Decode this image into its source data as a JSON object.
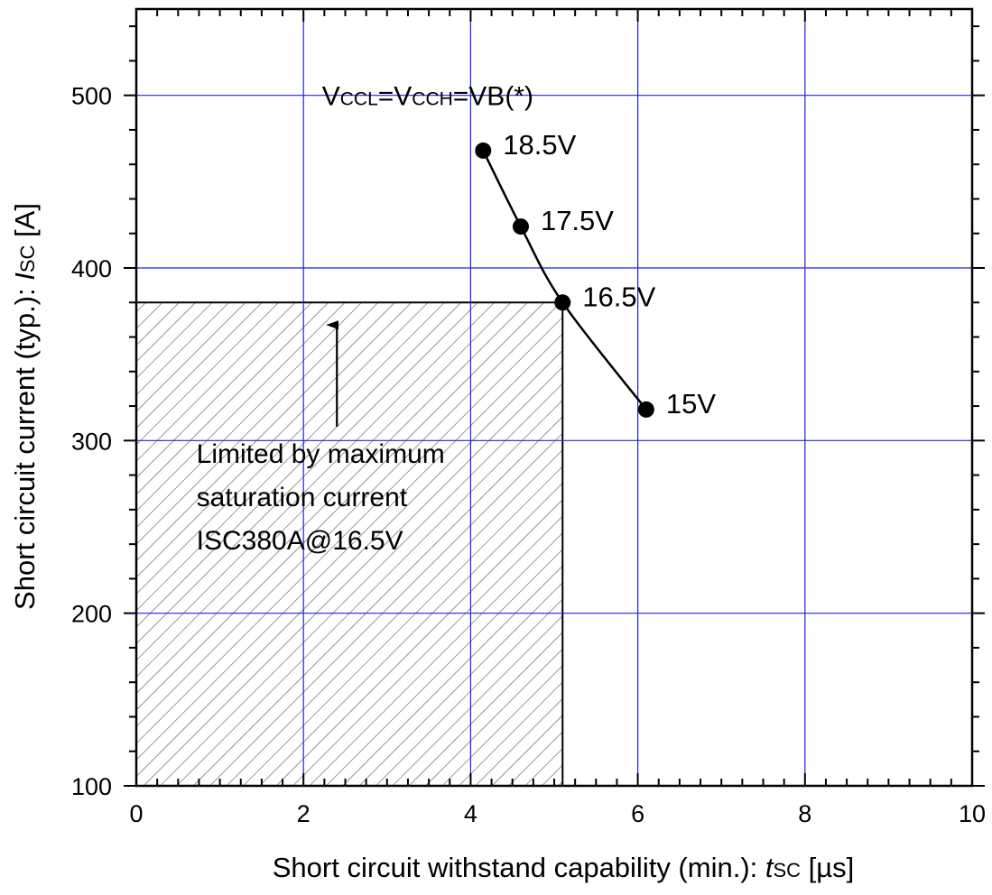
{
  "chart_data": {
    "type": "line",
    "title": "",
    "xlabel": {
      "prefix": "Short circuit withstand capability (min.): ",
      "symbol": "t",
      "subscript": "SC",
      "suffix": " [µs]"
    },
    "ylabel": {
      "prefix": "Short circuit current (typ.): ",
      "symbol": "I",
      "subscript": "SC",
      "suffix": " [A]"
    },
    "xlim": [
      0,
      10
    ],
    "ylim": [
      100,
      550
    ],
    "xticks": [
      0,
      2,
      4,
      6,
      8,
      10
    ],
    "xtick_labels": [
      "0",
      "2",
      "4",
      "6",
      "8",
      "10"
    ],
    "yticks": [
      100,
      200,
      300,
      400,
      500
    ],
    "ytick_labels": [
      "100",
      "200",
      "300",
      "400",
      "500"
    ],
    "grid": true,
    "grid_color": "#2222dd",
    "series": [
      {
        "x": [
          4.15,
          4.6,
          5.1,
          6.1
        ],
        "y": [
          468,
          424,
          380,
          318
        ],
        "point_labels": [
          "18.5V",
          "17.5V",
          "16.5V",
          "15V"
        ],
        "color": "#000000"
      }
    ],
    "shaded_region": {
      "x": [
        0,
        5.1
      ],
      "y": [
        100,
        380
      ],
      "pattern": "diagonal-hatch",
      "label_lines": [
        "Limited by maximum",
        "saturation current",
        "ISC380A@16.5V"
      ],
      "arrow": {
        "x": 2.4,
        "from_y": 308,
        "to_y": 367
      }
    },
    "annotation": {
      "x": 2.2,
      "y": 500,
      "parts": [
        {
          "t": "V",
          "sub": false
        },
        {
          "t": "CCL",
          "sub": true
        },
        {
          "t": "=V",
          "sub": false
        },
        {
          "t": "CCH",
          "sub": true
        },
        {
          "t": "=VB(*)",
          "sub": false
        }
      ]
    }
  }
}
